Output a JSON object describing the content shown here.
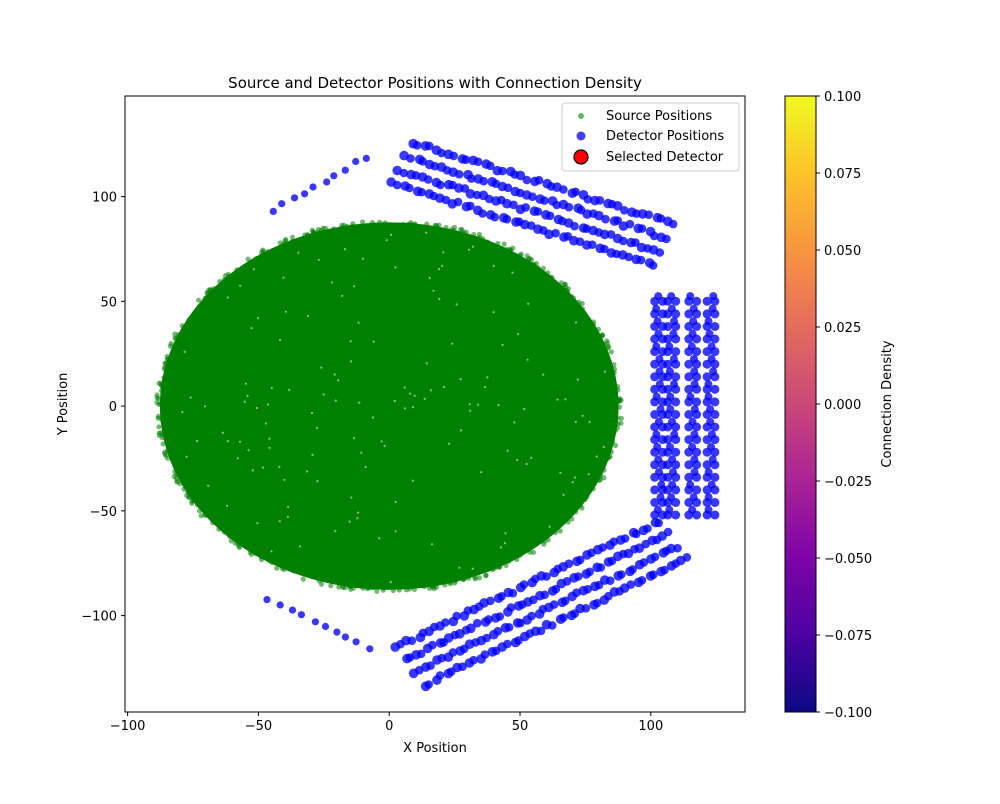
{
  "chart_data": {
    "type": "scatter",
    "title": "Source and Detector Positions with Connection Density",
    "xlabel": "X Position",
    "ylabel": "Y Position",
    "xlim": [
      -101,
      136
    ],
    "ylim": [
      -146,
      148
    ],
    "xticks": [
      -100,
      -50,
      0,
      50,
      100
    ],
    "xtick_labels": [
      "−100",
      "−50",
      "0",
      "50",
      "100"
    ],
    "yticks": [
      -100,
      -50,
      0,
      50,
      100
    ],
    "ytick_labels": [
      "−100",
      "−50",
      "0",
      "50",
      "100"
    ],
    "grid": false,
    "legend_position": "top-right",
    "series": [
      {
        "name": "Source Positions",
        "color": "#008000",
        "marker": "circle",
        "distribution": "uniform-disk",
        "center": [
          0,
          0
        ],
        "radius": 89,
        "approx_count": 25000
      },
      {
        "name": "Detector Positions",
        "color": "#0000ff",
        "marker": "circle",
        "clusters": [
          {
            "label": "upper-left arc",
            "start": [
              -45,
              93
            ],
            "end": [
              -8,
              119
            ],
            "rows": 1,
            "spacing": 5
          },
          {
            "label": "upper-right band",
            "start": [
              5,
              116
            ],
            "end": [
              105,
              77
            ],
            "rows": 4,
            "spacing": 5
          },
          {
            "label": "right block",
            "x": [
              103,
              108,
              116,
              123
            ],
            "y_range": [
              -52,
              52
            ],
            "y_step": 6
          },
          {
            "label": "lower-right band",
            "start": [
              8,
              -124
            ],
            "end": [
              105,
              -66
            ],
            "rows": 4,
            "spacing": 5
          },
          {
            "label": "lower-left arc",
            "start": [
              -46,
              -92
            ],
            "end": [
              -7,
              -116
            ],
            "rows": 1,
            "spacing": 5
          }
        ]
      },
      {
        "name": "Selected Detector",
        "color": "#ff0000",
        "edgecolor": "#000000",
        "marker": "circle",
        "points": []
      }
    ],
    "colorbar": {
      "label": "Connection Density",
      "cmap": "plasma",
      "range": [
        -0.1,
        0.1
      ],
      "ticks": [
        0.1,
        0.075,
        0.05,
        0.025,
        0.0,
        -0.025,
        -0.05,
        -0.075,
        -0.1
      ],
      "tick_labels": [
        "0.100",
        "0.075",
        "0.050",
        "0.025",
        "0.000",
        "−0.025",
        "−0.050",
        "−0.075",
        "−0.100"
      ]
    }
  }
}
